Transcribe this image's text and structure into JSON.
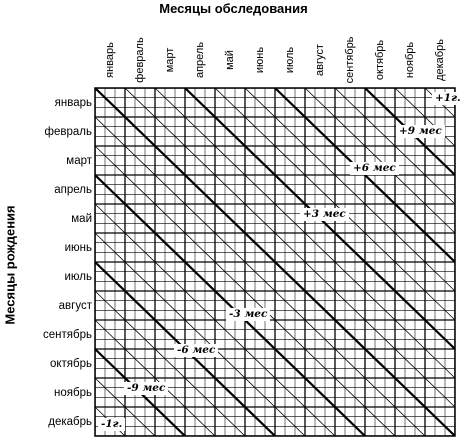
{
  "title_top": "Месяцы обследования",
  "title_left": "Месяцы рождения",
  "columns": [
    "январь",
    "февраль",
    "март",
    "апрель",
    "май",
    "июнь",
    "июль",
    "август",
    "сентябрь",
    "октябрь",
    "ноябрь",
    "декабрь"
  ],
  "rows": [
    "январь",
    "февраль",
    "март",
    "апрель",
    "май",
    "июнь",
    "июль",
    "август",
    "сентябрь",
    "октябрь",
    "ноябрь",
    "декабрь"
  ],
  "diagonal_labels": [
    {
      "text": "+1г.",
      "offset_months": 11
    },
    {
      "text": "+9 мес",
      "offset_months": 9
    },
    {
      "text": "+6 мес",
      "offset_months": 6
    },
    {
      "text": "+3 мес",
      "offset_months": 3
    },
    {
      "text": "-3 мес",
      "offset_months": -3
    },
    {
      "text": "-6 мес",
      "offset_months": -6
    },
    {
      "text": "-9 мес",
      "offset_months": -9
    },
    {
      "text": "-1г.",
      "offset_months": -11
    }
  ]
}
